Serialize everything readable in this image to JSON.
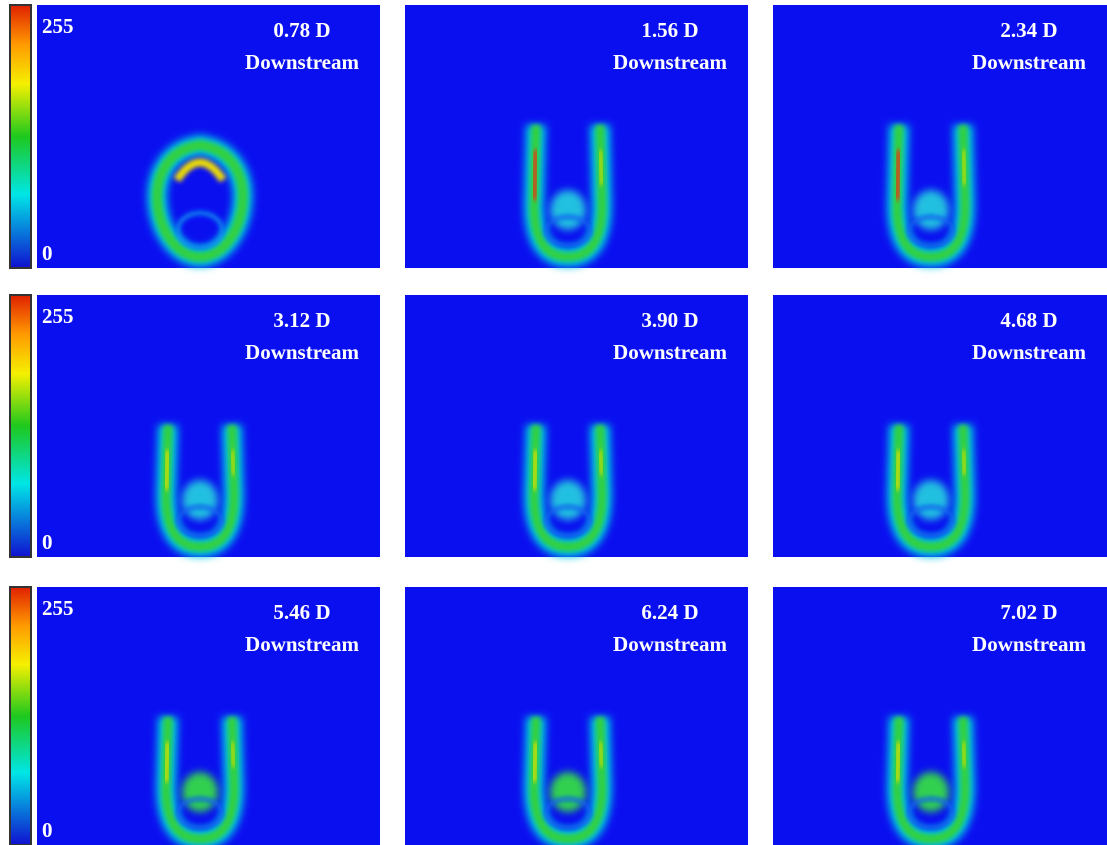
{
  "rows": [
    {
      "colorbar": {
        "max": 255,
        "min": 0
      },
      "panels": [
        {
          "distance": "0.78 D",
          "label": "Downstream"
        },
        {
          "distance": "1.56 D",
          "label": "Downstream"
        },
        {
          "distance": "2.34 D",
          "label": "Downstream"
        }
      ]
    },
    {
      "colorbar": {
        "max": 255,
        "min": 0
      },
      "panels": [
        {
          "distance": "3.12 D",
          "label": "Downstream"
        },
        {
          "distance": "3.90 D",
          "label": "Downstream"
        },
        {
          "distance": "4.68 D",
          "label": "Downstream"
        }
      ]
    },
    {
      "colorbar": {
        "max": 255,
        "min": 0
      },
      "panels": [
        {
          "distance": "5.46 D",
          "label": "Downstream"
        },
        {
          "distance": "6.24 D",
          "label": "Downstream"
        },
        {
          "distance": "7.02 D",
          "label": "Downstream"
        }
      ]
    }
  ]
}
